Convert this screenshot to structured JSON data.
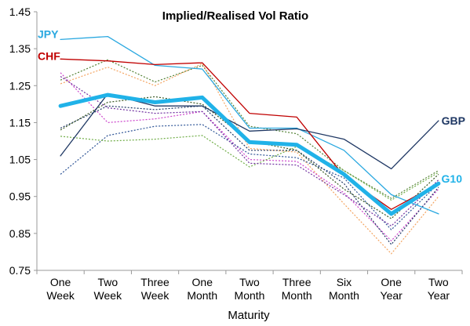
{
  "chart_data": {
    "type": "line",
    "title": "Implied/Realised Vol Ratio",
    "xlabel": "Maturity",
    "ylabel": "",
    "ylim": [
      0.75,
      1.45
    ],
    "yticks": [
      "0.75",
      "0.85",
      "0.95",
      "1.05",
      "1.15",
      "1.25",
      "1.35",
      "1.45"
    ],
    "grid": false,
    "legend": "none",
    "categories": [
      [
        "One",
        "Week"
      ],
      [
        "Two",
        "Week"
      ],
      [
        "Three",
        "Week"
      ],
      [
        "One",
        "Month"
      ],
      [
        "Two",
        "Month"
      ],
      [
        "Three",
        "Month"
      ],
      [
        "Six",
        "Month"
      ],
      [
        "One",
        "Year"
      ],
      [
        "Two",
        "Year"
      ]
    ],
    "series": [
      {
        "name": "JPY",
        "color": "#2aa8e0",
        "style": "solid",
        "width": 1.3,
        "label_pos": "start",
        "values": [
          1.375,
          1.383,
          1.305,
          1.295,
          1.135,
          1.135,
          1.075,
          0.955,
          0.903
        ]
      },
      {
        "name": "CHF",
        "color": "#c00000",
        "style": "solid",
        "width": 1.3,
        "label_pos": "start",
        "values": [
          1.322,
          1.317,
          1.307,
          1.312,
          1.175,
          1.165,
          1.005,
          0.915,
          0.985
        ]
      },
      {
        "name": "GBP",
        "color": "#1f3864",
        "style": "solid",
        "width": 1.3,
        "label_pos": "end",
        "values": [
          1.06,
          1.228,
          1.195,
          1.195,
          1.127,
          1.133,
          1.105,
          1.025,
          1.155
        ]
      },
      {
        "name": "G10",
        "color": "#20b2e8",
        "style": "solid",
        "width": 5,
        "label_pos": "end",
        "values": [
          1.195,
          1.225,
          1.205,
          1.218,
          1.097,
          1.09,
          1.01,
          0.903,
          0.985
        ]
      },
      {
        "color": "#548235",
        "style": "dotted",
        "width": 1.2,
        "values": [
          1.265,
          1.32,
          1.26,
          1.305,
          1.14,
          1.12,
          1.02,
          0.945,
          1.02
        ]
      },
      {
        "color": "#f4a460",
        "style": "dotted",
        "width": 1.2,
        "values": [
          1.255,
          1.3,
          1.25,
          1.31,
          1.08,
          1.07,
          0.93,
          0.795,
          0.95
        ]
      },
      {
        "color": "#cc44cc",
        "style": "dotted",
        "width": 1.2,
        "values": [
          1.285,
          1.15,
          1.16,
          1.18,
          1.05,
          1.045,
          0.96,
          0.83,
          0.97
        ]
      },
      {
        "color": "#2f5597",
        "style": "dotted",
        "width": 1.2,
        "values": [
          1.01,
          1.115,
          1.14,
          1.145,
          1.065,
          1.055,
          1.0,
          0.86,
          0.985
        ]
      },
      {
        "color": "#70ad47",
        "style": "dotted",
        "width": 1.2,
        "values": [
          1.113,
          1.1,
          1.105,
          1.115,
          1.03,
          1.085,
          1.02,
          0.94,
          1.015
        ]
      },
      {
        "color": "#203864",
        "style": "dotted",
        "width": 1.2,
        "values": [
          1.135,
          1.195,
          1.185,
          1.195,
          1.075,
          1.075,
          0.985,
          0.82,
          0.975
        ]
      },
      {
        "color": "#7030a0",
        "style": "dotted",
        "width": 1.2,
        "values": [
          1.275,
          1.19,
          1.175,
          1.18,
          1.04,
          1.035,
          0.955,
          0.87,
          0.995
        ]
      },
      {
        "color": "#385723",
        "style": "dotted",
        "width": 1.2,
        "values": [
          1.13,
          1.205,
          1.22,
          1.2,
          1.1,
          1.075,
          0.97,
          0.89,
          1.01
        ]
      }
    ]
  }
}
